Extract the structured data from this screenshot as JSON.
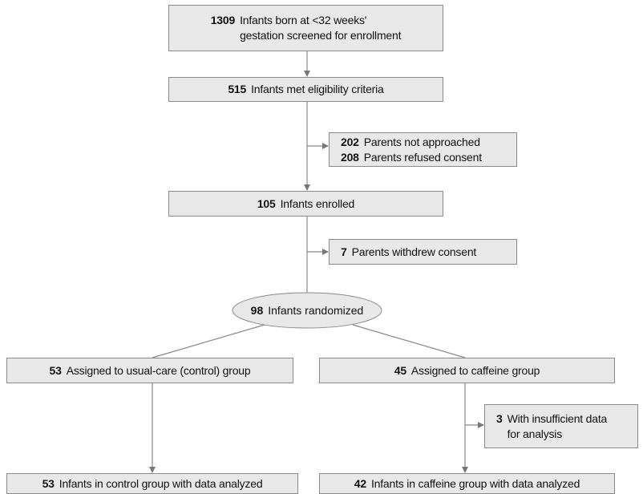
{
  "nodes": [
    {
      "entries": [
        {
          "count": 1309,
          "lines": [
            "Infants born at <32 weeks'",
            "gestation screened for enrollment"
          ]
        }
      ]
    },
    {
      "entries": [
        {
          "count": 515,
          "lines": [
            "Infants met eligibility criteria"
          ]
        }
      ]
    },
    {
      "entries": [
        {
          "count": 202,
          "lines": [
            "Parents not approached"
          ]
        },
        {
          "count": 208,
          "lines": [
            "Parents refused consent"
          ]
        }
      ]
    },
    {
      "entries": [
        {
          "count": 105,
          "lines": [
            "Infants enrolled"
          ]
        }
      ]
    },
    {
      "entries": [
        {
          "count": 7,
          "lines": [
            "Parents withdrew consent"
          ]
        }
      ]
    },
    {
      "entries": [
        {
          "count": 98,
          "lines": [
            "Infants randomized"
          ]
        }
      ]
    },
    {
      "entries": [
        {
          "count": 53,
          "lines": [
            "Assigned to usual-care (control) group"
          ]
        }
      ]
    },
    {
      "entries": [
        {
          "count": 45,
          "lines": [
            "Assigned to caffeine group"
          ]
        }
      ]
    },
    {
      "entries": [
        {
          "count": 3,
          "lines": [
            "With insufficient data",
            "for analysis"
          ]
        }
      ]
    },
    {
      "entries": [
        {
          "count": 53,
          "lines": [
            "Infants in control group with data analyzed"
          ]
        }
      ]
    },
    {
      "entries": [
        {
          "count": 42,
          "lines": [
            "Infants in caffeine group with data analyzed"
          ]
        }
      ]
    }
  ]
}
